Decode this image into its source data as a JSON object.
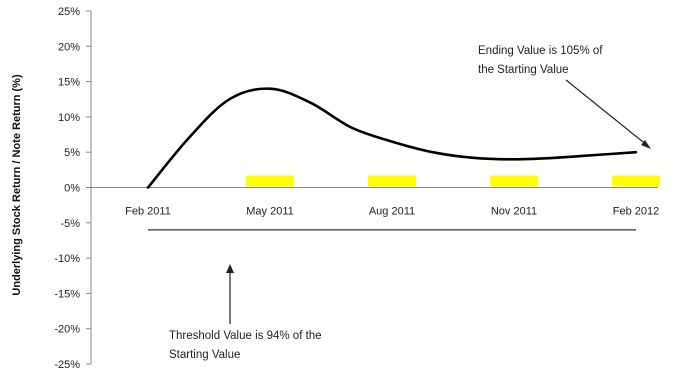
{
  "chart_data": {
    "type": "line",
    "ylabel": "Underlying Stock Return / Note Return (%)",
    "ylim": [
      -25,
      25
    ],
    "y_ticks": [
      "25%",
      "20%",
      "15%",
      "10%",
      "5%",
      "0%",
      "-5%",
      "-10%",
      "-15%",
      "-20%",
      "-25%"
    ],
    "categories": [
      "Feb 2011",
      "May 2011",
      "Aug 2011",
      "Nov 2011",
      "Feb 2012"
    ],
    "series": [
      {
        "x": [
          "Feb 2011",
          "Mar 2011",
          "Apr 2011",
          "May 2011",
          "Jun 2011",
          "Jul 2011",
          "Aug 2011",
          "Sep 2011",
          "Oct 2011",
          "Nov 2011",
          "Dec 2011",
          "Jan 2012",
          "Feb 2012"
        ],
        "values": [
          0,
          7,
          12.5,
          14,
          12,
          8.5,
          6.5,
          5,
          4.2,
          4,
          4.2,
          4.6,
          5
        ],
        "color": "#000000"
      }
    ],
    "coupon_markers": {
      "x": [
        "May 2011",
        "Aug 2011",
        "Nov 2011",
        "Feb 2012"
      ],
      "value": 1.7,
      "color": "#ffff00"
    },
    "threshold_line": {
      "value": -6,
      "from": "Feb 2011",
      "to": "Feb 2012",
      "color": "#333333"
    },
    "annotations": [
      {
        "id": "ending",
        "lines": [
          "Ending Value is 105% of",
          "the Starting Value"
        ]
      },
      {
        "id": "threshold",
        "lines": [
          "Threshold Value is 94% of the",
          "Starting Value"
        ]
      }
    ]
  }
}
